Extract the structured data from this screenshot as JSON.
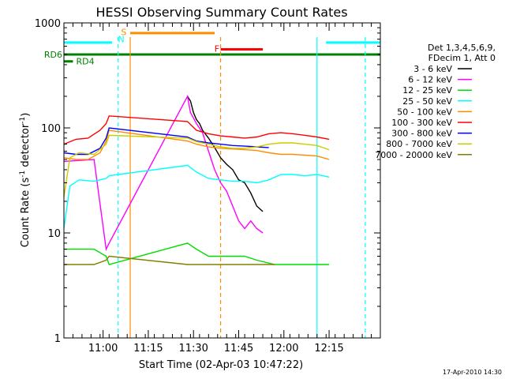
{
  "chart_data": {
    "type": "line",
    "title": "HESSI Observing Summary Count Rates",
    "xlabel": "Start Time (02-Apr-03 10:47:22)",
    "ylabel_main": "Count Rate (s",
    "ylabel_sup1": "-1",
    "ylabel_mid": " detector",
    "ylabel_sup2": "-1",
    "ylabel_end": ")",
    "y_scale": "log",
    "ylim": [
      1,
      1000
    ],
    "xlim": [
      0,
      105
    ],
    "y_ticks": [
      {
        "value": 1,
        "label": "1"
      },
      {
        "value": 10,
        "label": "10"
      },
      {
        "value": 100,
        "label": "100"
      },
      {
        "value": 1000,
        "label": "1000"
      }
    ],
    "x_ticks": [
      {
        "value": 13,
        "label": "11:00"
      },
      {
        "value": 28,
        "label": "11:15"
      },
      {
        "value": 43,
        "label": "11:30"
      },
      {
        "value": 58,
        "label": "11:45"
      },
      {
        "value": 73,
        "label": "12:00"
      },
      {
        "value": 88,
        "label": "12:15"
      }
    ],
    "legend_header": [
      "Det 1,3,4,5,6,9,",
      "FDecim 1, Att 0"
    ],
    "series": [
      {
        "name": "3 - 6 keV",
        "color": "#000000",
        "points": [
          [
            41,
            200
          ],
          [
            42,
            180
          ],
          [
            43,
            140
          ],
          [
            44,
            120
          ],
          [
            45,
            110
          ],
          [
            46,
            95
          ],
          [
            48,
            80
          ],
          [
            50,
            65
          ],
          [
            52,
            52
          ],
          [
            54,
            45
          ],
          [
            56,
            40
          ],
          [
            58,
            32
          ],
          [
            60,
            30
          ],
          [
            62,
            24
          ],
          [
            64,
            18
          ],
          [
            66,
            16
          ]
        ]
      },
      {
        "name": "6 - 12 keV",
        "color": "#ff00ff",
        "points": [
          [
            0,
            48
          ],
          [
            10,
            50
          ],
          [
            14,
            7
          ],
          [
            15,
            8
          ],
          [
            41,
            200
          ],
          [
            42,
            140
          ],
          [
            44,
            110
          ],
          [
            46,
            90
          ],
          [
            48,
            60
          ],
          [
            50,
            40
          ],
          [
            52,
            30
          ],
          [
            54,
            25
          ],
          [
            56,
            18
          ],
          [
            58,
            13
          ],
          [
            60,
            11
          ],
          [
            62,
            13
          ],
          [
            64,
            11
          ],
          [
            66,
            10
          ]
        ]
      },
      {
        "name": "12 - 25 keV",
        "color": "#00dd00",
        "points": [
          [
            0,
            7
          ],
          [
            10,
            7
          ],
          [
            14,
            6
          ],
          [
            15,
            5
          ],
          [
            41,
            8
          ],
          [
            44,
            7
          ],
          [
            48,
            6
          ],
          [
            52,
            6
          ],
          [
            56,
            6
          ],
          [
            60,
            6
          ],
          [
            64,
            5.5
          ],
          [
            70,
            5
          ],
          [
            80,
            5
          ],
          [
            88,
            5
          ]
        ]
      },
      {
        "name": "25 - 50 keV",
        "color": "#00ffff",
        "points": [
          [
            0,
            11
          ],
          [
            2,
            28
          ],
          [
            5,
            32
          ],
          [
            10,
            31
          ],
          [
            14,
            33
          ],
          [
            15,
            35
          ],
          [
            41,
            44
          ],
          [
            44,
            38
          ],
          [
            48,
            33
          ],
          [
            52,
            32
          ],
          [
            56,
            31
          ],
          [
            60,
            31
          ],
          [
            64,
            30
          ],
          [
            68,
            32
          ],
          [
            72,
            36
          ],
          [
            76,
            36
          ],
          [
            80,
            35
          ],
          [
            84,
            36
          ],
          [
            88,
            34
          ]
        ]
      },
      {
        "name": "50 - 100 keV",
        "color": "#ff8c00",
        "points": [
          [
            0,
            52
          ],
          [
            4,
            50
          ],
          [
            8,
            50
          ],
          [
            12,
            58
          ],
          [
            14,
            75
          ],
          [
            15,
            95
          ],
          [
            41,
            75
          ],
          [
            44,
            70
          ],
          [
            48,
            66
          ],
          [
            52,
            64
          ],
          [
            56,
            63
          ],
          [
            60,
            62
          ],
          [
            64,
            61
          ],
          [
            68,
            58
          ],
          [
            72,
            56
          ],
          [
            76,
            56
          ],
          [
            80,
            55
          ],
          [
            84,
            54
          ],
          [
            88,
            50
          ]
        ]
      },
      {
        "name": "100 - 300 keV",
        "color": "#ff0000",
        "points": [
          [
            0,
            70
          ],
          [
            4,
            78
          ],
          [
            8,
            80
          ],
          [
            12,
            95
          ],
          [
            14,
            110
          ],
          [
            15,
            130
          ],
          [
            41,
            115
          ],
          [
            44,
            95
          ],
          [
            48,
            88
          ],
          [
            52,
            84
          ],
          [
            56,
            82
          ],
          [
            60,
            80
          ],
          [
            64,
            82
          ],
          [
            68,
            88
          ],
          [
            72,
            90
          ],
          [
            76,
            88
          ],
          [
            80,
            85
          ],
          [
            84,
            82
          ],
          [
            88,
            78
          ]
        ]
      },
      {
        "name": "300 - 800 keV",
        "color": "#0000ff",
        "points": [
          [
            0,
            58
          ],
          [
            4,
            56
          ],
          [
            8,
            56
          ],
          [
            12,
            64
          ],
          [
            14,
            80
          ],
          [
            15,
            100
          ],
          [
            41,
            82
          ],
          [
            44,
            75
          ],
          [
            48,
            72
          ],
          [
            52,
            70
          ],
          [
            56,
            68
          ],
          [
            60,
            67
          ],
          [
            64,
            66
          ],
          [
            68,
            65
          ]
        ]
      },
      {
        "name": "800 - 7000 keV",
        "color": "#cccc00",
        "points": [
          [
            0,
            22
          ],
          [
            2,
            52
          ],
          [
            5,
            58
          ],
          [
            10,
            56
          ],
          [
            14,
            70
          ],
          [
            15,
            85
          ],
          [
            41,
            80
          ],
          [
            44,
            74
          ],
          [
            48,
            70
          ],
          [
            52,
            66
          ],
          [
            56,
            64
          ],
          [
            60,
            64
          ],
          [
            64,
            66
          ],
          [
            68,
            70
          ],
          [
            72,
            72
          ],
          [
            76,
            72
          ],
          [
            80,
            70
          ],
          [
            84,
            68
          ],
          [
            88,
            62
          ]
        ]
      },
      {
        "name": "7000 - 20000 keV",
        "color": "#808000",
        "points": [
          [
            0,
            5
          ],
          [
            10,
            5
          ],
          [
            14,
            5.5
          ],
          [
            15,
            6
          ],
          [
            41,
            5
          ],
          [
            48,
            5
          ],
          [
            56,
            5
          ],
          [
            64,
            5
          ],
          [
            70,
            5
          ]
        ]
      }
    ],
    "flag_bars": [
      {
        "label": "",
        "color": "#00ffff",
        "y": 650,
        "x": [
          0,
          16
        ]
      },
      {
        "label": "S",
        "color": "#ff8c00",
        "y": 800,
        "x": [
          22,
          50
        ]
      },
      {
        "label": "F",
        "color": "#ff0000",
        "y": 560,
        "x": [
          52,
          66
        ]
      },
      {
        "label": "",
        "color": "#00ffff",
        "y": 650,
        "x": [
          87,
          105
        ]
      },
      {
        "label": "RD6",
        "color": "#008000",
        "y": 500,
        "x": [
          0,
          105
        ]
      },
      {
        "label": "RD4",
        "color": "#008000",
        "y": 430,
        "x": [
          0,
          3
        ]
      }
    ],
    "flag_letters": [
      {
        "label": "N",
        "color": "#00ffff",
        "x": 19,
        "y": 700
      },
      {
        "label": "S",
        "color": "#ff8c00",
        "x": 20,
        "y": 820
      },
      {
        "label": "F",
        "color": "#ff0000",
        "x": 51,
        "y": 570
      }
    ],
    "markers": [
      {
        "x": 18,
        "color": "#00ffff",
        "style": "dashed"
      },
      {
        "x": 22,
        "color": "#ff8c00",
        "style": "solid"
      },
      {
        "x": 52,
        "color": "#ff8c00",
        "style": "dashed"
      },
      {
        "x": 84,
        "color": "#00ffff",
        "style": "solid"
      },
      {
        "x": 100,
        "color": "#00ffff",
        "style": "dashed"
      }
    ],
    "timestamp": "17-Apr-2010 14:30",
    "grid": false,
    "legend_position": "right"
  }
}
